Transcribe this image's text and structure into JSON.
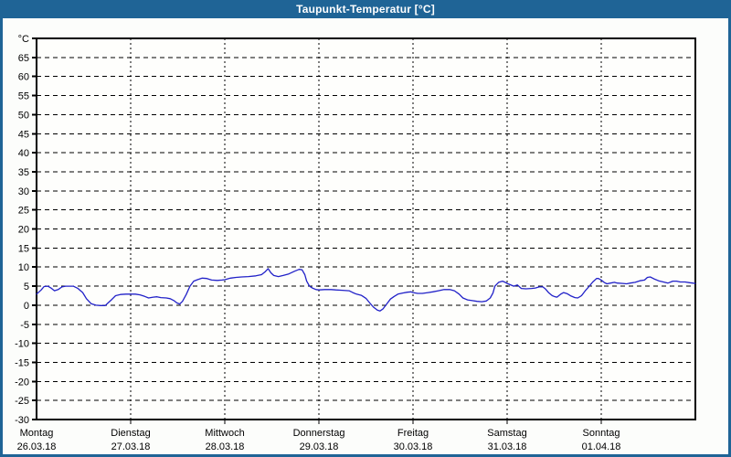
{
  "window": {
    "title": "Taupunkt-Temperatur [°C]",
    "titlebar_color": "#1f6496",
    "frame_color": "#1f6496",
    "content_background": "#fcfdfb",
    "title_text_color": "#ffffff"
  },
  "chart_data": {
    "type": "line",
    "title": "Taupunkt-Temperatur [°C]",
    "xlabel": "",
    "ylabel": "°C",
    "ylim": [
      -30,
      70
    ],
    "y_step": 5,
    "grid": "dashed",
    "legend": "none",
    "line_color": "#2121c8",
    "grid_color": "#000000",
    "axis_color": "#000000",
    "plot_background": "#fefefc",
    "x_days": [
      {
        "name": "Montag",
        "date": "26.03.18"
      },
      {
        "name": "Dienstag",
        "date": "27.03.18"
      },
      {
        "name": "Mittwoch",
        "date": "28.03.18"
      },
      {
        "name": "Donnerstag",
        "date": "29.03.18"
      },
      {
        "name": "Freitag",
        "date": "30.03.18"
      },
      {
        "name": "Samstag",
        "date": "31.03.18"
      },
      {
        "name": "Sonntag",
        "date": "01.04.18"
      }
    ],
    "x_range_days": [
      0,
      7
    ],
    "series": [
      {
        "name": "Taupunkt",
        "points": [
          [
            0.0,
            2.9
          ],
          [
            0.05,
            4.0
          ],
          [
            0.08,
            4.9
          ],
          [
            0.12,
            5.0
          ],
          [
            0.16,
            4.4
          ],
          [
            0.19,
            3.8
          ],
          [
            0.23,
            4.1
          ],
          [
            0.27,
            4.8
          ],
          [
            0.31,
            5.0
          ],
          [
            0.39,
            5.0
          ],
          [
            0.44,
            4.4
          ],
          [
            0.49,
            3.3
          ],
          [
            0.53,
            1.7
          ],
          [
            0.58,
            0.4
          ],
          [
            0.63,
            0.0
          ],
          [
            0.68,
            -0.1
          ],
          [
            0.73,
            -0.1
          ],
          [
            0.76,
            0.6
          ],
          [
            0.8,
            1.5
          ],
          [
            0.84,
            2.5
          ],
          [
            0.89,
            2.8
          ],
          [
            0.95,
            2.9
          ],
          [
            1.0,
            2.9
          ],
          [
            1.05,
            2.9
          ],
          [
            1.1,
            2.7
          ],
          [
            1.15,
            2.3
          ],
          [
            1.19,
            1.9
          ],
          [
            1.24,
            2.1
          ],
          [
            1.28,
            2.2
          ],
          [
            1.32,
            2.0
          ],
          [
            1.38,
            1.9
          ],
          [
            1.42,
            1.7
          ],
          [
            1.46,
            1.2
          ],
          [
            1.49,
            0.6
          ],
          [
            1.52,
            0.3
          ],
          [
            1.55,
            1.0
          ],
          [
            1.59,
            2.8
          ],
          [
            1.63,
            5.0
          ],
          [
            1.67,
            6.3
          ],
          [
            1.71,
            6.7
          ],
          [
            1.76,
            7.1
          ],
          [
            1.81,
            7.0
          ],
          [
            1.86,
            6.6
          ],
          [
            1.92,
            6.5
          ],
          [
            1.97,
            6.6
          ],
          [
            2.0,
            6.7
          ],
          [
            2.06,
            7.1
          ],
          [
            2.12,
            7.3
          ],
          [
            2.18,
            7.4
          ],
          [
            2.25,
            7.5
          ],
          [
            2.33,
            7.7
          ],
          [
            2.39,
            8.0
          ],
          [
            2.43,
            8.8
          ],
          [
            2.46,
            9.6
          ],
          [
            2.49,
            8.5
          ],
          [
            2.52,
            7.8
          ],
          [
            2.57,
            7.5
          ],
          [
            2.62,
            7.8
          ],
          [
            2.68,
            8.2
          ],
          [
            2.74,
            8.9
          ],
          [
            2.79,
            9.4
          ],
          [
            2.82,
            9.3
          ],
          [
            2.85,
            8.0
          ],
          [
            2.87,
            6.3
          ],
          [
            2.9,
            5.0
          ],
          [
            2.93,
            4.5
          ],
          [
            2.97,
            4.1
          ],
          [
            3.0,
            4.0
          ],
          [
            3.06,
            4.1
          ],
          [
            3.13,
            4.1
          ],
          [
            3.18,
            4.0
          ],
          [
            3.25,
            3.9
          ],
          [
            3.32,
            3.8
          ],
          [
            3.36,
            3.3
          ],
          [
            3.4,
            2.9
          ],
          [
            3.45,
            2.6
          ],
          [
            3.5,
            1.8
          ],
          [
            3.54,
            0.6
          ],
          [
            3.58,
            -0.5
          ],
          [
            3.62,
            -1.3
          ],
          [
            3.65,
            -1.5
          ],
          [
            3.68,
            -1.0
          ],
          [
            3.72,
            0.3
          ],
          [
            3.76,
            1.6
          ],
          [
            3.8,
            2.3
          ],
          [
            3.84,
            2.9
          ],
          [
            3.89,
            3.2
          ],
          [
            3.94,
            3.4
          ],
          [
            3.98,
            3.5
          ],
          [
            4.0,
            3.3
          ],
          [
            4.05,
            3.1
          ],
          [
            4.1,
            3.1
          ],
          [
            4.16,
            3.3
          ],
          [
            4.21,
            3.5
          ],
          [
            4.27,
            3.8
          ],
          [
            4.33,
            4.1
          ],
          [
            4.39,
            4.1
          ],
          [
            4.44,
            3.8
          ],
          [
            4.49,
            2.9
          ],
          [
            4.53,
            1.9
          ],
          [
            4.58,
            1.4
          ],
          [
            4.63,
            1.2
          ],
          [
            4.68,
            1.0
          ],
          [
            4.73,
            0.9
          ],
          [
            4.78,
            1.1
          ],
          [
            4.82,
            1.9
          ],
          [
            4.85,
            3.2
          ],
          [
            4.87,
            5.0
          ],
          [
            4.91,
            6.0
          ],
          [
            4.95,
            6.3
          ],
          [
            4.98,
            6.0
          ],
          [
            5.0,
            5.7
          ],
          [
            5.03,
            5.4
          ],
          [
            5.07,
            5.0
          ],
          [
            5.11,
            5.3
          ],
          [
            5.15,
            4.4
          ],
          [
            5.2,
            4.3
          ],
          [
            5.26,
            4.4
          ],
          [
            5.3,
            4.5
          ],
          [
            5.34,
            4.8
          ],
          [
            5.38,
            4.8
          ],
          [
            5.41,
            4.2
          ],
          [
            5.44,
            3.3
          ],
          [
            5.48,
            2.5
          ],
          [
            5.51,
            2.2
          ],
          [
            5.53,
            2.1
          ],
          [
            5.57,
            2.9
          ],
          [
            5.6,
            3.3
          ],
          [
            5.64,
            3.0
          ],
          [
            5.68,
            2.4
          ],
          [
            5.72,
            2.0
          ],
          [
            5.75,
            1.9
          ],
          [
            5.79,
            2.5
          ],
          [
            5.83,
            3.8
          ],
          [
            5.87,
            4.9
          ],
          [
            5.91,
            6.1
          ],
          [
            5.95,
            7.0
          ],
          [
            5.97,
            7.0
          ],
          [
            6.0,
            6.6
          ],
          [
            6.03,
            6.0
          ],
          [
            6.06,
            5.6
          ],
          [
            6.1,
            5.8
          ],
          [
            6.14,
            6.0
          ],
          [
            6.17,
            5.8
          ],
          [
            6.23,
            5.7
          ],
          [
            6.27,
            5.6
          ],
          [
            6.31,
            5.8
          ],
          [
            6.36,
            6.0
          ],
          [
            6.41,
            6.4
          ],
          [
            6.46,
            6.6
          ],
          [
            6.49,
            7.3
          ],
          [
            6.52,
            7.4
          ],
          [
            6.56,
            6.9
          ],
          [
            6.61,
            6.4
          ],
          [
            6.66,
            6.1
          ],
          [
            6.71,
            5.8
          ],
          [
            6.76,
            6.3
          ],
          [
            6.8,
            6.3
          ],
          [
            6.84,
            6.1
          ],
          [
            6.89,
            6.1
          ],
          [
            6.94,
            5.9
          ],
          [
            6.97,
            5.8
          ],
          [
            7.0,
            5.7
          ]
        ]
      }
    ]
  }
}
